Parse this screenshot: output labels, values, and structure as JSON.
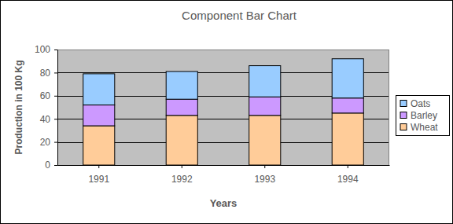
{
  "chart_data": {
    "type": "bar",
    "title": "Component Bar Chart",
    "x_label": "Years",
    "y_label": "Production in 100 Kg",
    "categories": [
      "1991",
      "1992",
      "1993",
      "1994"
    ],
    "series": [
      {
        "name": "Wheat",
        "color": "#ffcc99",
        "values": [
          34,
          43,
          43,
          45
        ]
      },
      {
        "name": "Barley",
        "color": "#cc99ff",
        "values": [
          18,
          14,
          16,
          13
        ]
      },
      {
        "name": "Oats",
        "color": "#99ccff",
        "values": [
          27,
          24,
          27,
          34
        ]
      }
    ],
    "stacked": true,
    "ylim": [
      0,
      100
    ],
    "yticks": [
      0,
      20,
      40,
      60,
      80,
      100
    ],
    "grid": true,
    "legend": "right"
  }
}
